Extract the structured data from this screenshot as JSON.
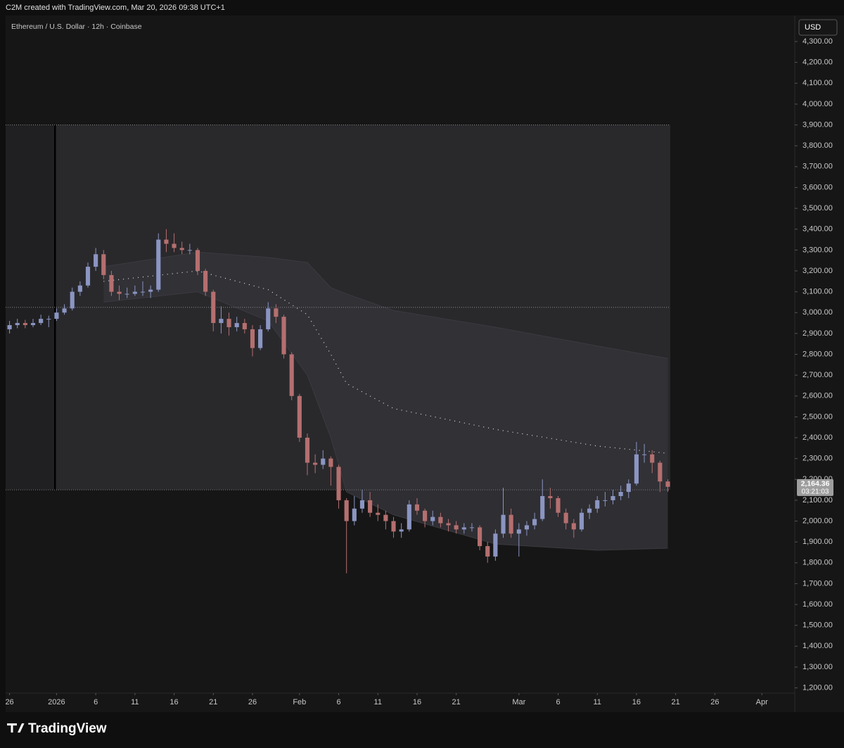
{
  "header": "C2M created with TradingView.com, Mar 20, 2026 09:38 UTC+1",
  "logo": "TradingView",
  "chart_data": {
    "type": "candlestick",
    "title": "Ethereum / U.S. Dollar · 12h · Coinbase",
    "currency": "USD",
    "up_color": "#8b95c2",
    "down_color": "#b56f6f",
    "x": [
      0,
      1,
      2,
      3,
      4,
      5,
      6,
      7,
      8,
      9,
      10,
      11,
      12,
      13,
      14,
      15,
      16,
      17,
      18,
      19,
      20,
      21,
      22,
      23,
      24,
      25,
      26,
      27,
      28,
      29,
      30,
      31,
      32,
      33,
      34,
      35,
      36,
      37,
      38,
      39,
      40,
      41,
      42,
      43,
      44,
      45,
      46,
      47,
      48,
      49,
      50,
      51,
      52,
      53,
      54,
      55,
      56,
      57,
      58,
      59,
      60,
      61,
      62,
      63,
      64,
      65,
      66,
      67,
      68,
      69,
      70,
      71,
      72,
      73,
      74,
      75,
      76,
      77,
      78,
      79,
      80,
      81,
      82,
      83,
      84
    ],
    "open": [
      2920,
      2940,
      2950,
      2940,
      2950,
      2970,
      2970,
      3000,
      3020,
      3100,
      3130,
      3220,
      3280,
      3180,
      3100,
      3090,
      3090,
      3100,
      3100,
      3110,
      3350,
      3330,
      3310,
      3300,
      3300,
      3200,
      3100,
      2950,
      2970,
      2930,
      2950,
      2920,
      2830,
      2920,
      3020,
      2980,
      2800,
      2600,
      2400,
      2280,
      2270,
      2300,
      2260,
      2100,
      2000,
      2060,
      2100,
      2040,
      2030,
      2000,
      1950,
      1960,
      2080,
      2050,
      2000,
      2020,
      1990,
      1980,
      1960,
      1970,
      1970,
      1880,
      1830,
      1940,
      2030,
      1940,
      1960,
      1980,
      2010,
      2120,
      2110,
      2040,
      1990,
      1960,
      2040,
      2060,
      2100,
      2100,
      2120,
      2140,
      2180,
      2320,
      2320,
      2280,
      2190
    ],
    "high": [
      2960,
      2970,
      2965,
      2970,
      2990,
      2985,
      3020,
      3040,
      3120,
      3150,
      3240,
      3310,
      3300,
      3200,
      3130,
      3120,
      3130,
      3150,
      3130,
      3380,
      3400,
      3380,
      3340,
      3330,
      3310,
      3210,
      3110,
      3030,
      3000,
      2980,
      2970,
      2940,
      2940,
      3050,
      3040,
      2990,
      2810,
      2610,
      2420,
      2320,
      2340,
      2310,
      2270,
      2110,
      2120,
      2150,
      2140,
      2080,
      2050,
      2020,
      1990,
      2100,
      2110,
      2060,
      2050,
      2040,
      2010,
      2000,
      1990,
      1990,
      1980,
      1900,
      1960,
      2160,
      2060,
      1990,
      2000,
      2040,
      2200,
      2160,
      2120,
      2060,
      2010,
      2060,
      2080,
      2120,
      2140,
      2150,
      2170,
      2200,
      2380,
      2370,
      2340,
      2290,
      2200
    ],
    "low": [
      2900,
      2925,
      2925,
      2930,
      2940,
      2930,
      2960,
      2990,
      3010,
      3080,
      3120,
      3200,
      3160,
      3080,
      3060,
      3070,
      3080,
      3080,
      3070,
      3100,
      3290,
      3290,
      3280,
      3280,
      3180,
      3080,
      2910,
      2900,
      2890,
      2910,
      2900,
      2790,
      2820,
      2910,
      2950,
      2780,
      2580,
      2380,
      2220,
      2230,
      2250,
      2170,
      2060,
      1750,
      1980,
      2040,
      2020,
      2000,
      1960,
      1920,
      1920,
      1950,
      2030,
      1970,
      1980,
      1970,
      1950,
      1940,
      1940,
      1950,
      1860,
      1800,
      1810,
      1920,
      1920,
      1830,
      1930,
      1960,
      2000,
      2060,
      2020,
      1960,
      1920,
      1950,
      2010,
      2040,
      2070,
      2080,
      2100,
      2110,
      2170,
      2280,
      2230,
      2140,
      2140
    ],
    "close": [
      2940,
      2950,
      2940,
      2950,
      2970,
      2970,
      3000,
      3020,
      3100,
      3130,
      3220,
      3280,
      3180,
      3100,
      3090,
      3090,
      3100,
      3100,
      3110,
      3350,
      3330,
      3310,
      3300,
      3300,
      3200,
      3100,
      2950,
      2970,
      2930,
      2950,
      2920,
      2830,
      2920,
      3020,
      2980,
      2800,
      2600,
      2400,
      2280,
      2270,
      2300,
      2260,
      2100,
      2000,
      2060,
      2100,
      2040,
      2030,
      2000,
      1950,
      1960,
      2080,
      2050,
      2000,
      2020,
      1990,
      1980,
      1960,
      1970,
      1970,
      1880,
      1830,
      1940,
      2030,
      1940,
      1960,
      1980,
      2010,
      2120,
      2110,
      2040,
      1990,
      1960,
      2040,
      2060,
      2100,
      2100,
      2120,
      2140,
      2180,
      2320,
      2320,
      2280,
      2190,
      2164.36
    ],
    "bands": {
      "x": [
        12,
        24,
        33,
        38,
        41,
        43,
        49,
        62,
        75,
        84
      ],
      "upper": [
        3220,
        3290,
        3265,
        3240,
        3120,
        3090,
        3010,
        2930,
        2840,
        2780
      ],
      "middle": [
        3150,
        3200,
        3110,
        2990,
        2800,
        2660,
        2540,
        2440,
        2360,
        2325
      ],
      "lower": [
        3050,
        3100,
        2960,
        2700,
        2400,
        2140,
        2030,
        1890,
        1860,
        1870
      ]
    },
    "levels": [
      3900,
      3025,
      2150
    ],
    "last_price": {
      "value": 2164.36,
      "label": "2,164.36"
    },
    "countdown": "03:21:03",
    "xlim": [
      -0.5,
      100.2
    ],
    "xticks": [
      {
        "value": 0,
        "label": "26"
      },
      {
        "value": 6,
        "label": "2026"
      },
      {
        "value": 11,
        "label": "6"
      },
      {
        "value": 16,
        "label": "11"
      },
      {
        "value": 21,
        "label": "16"
      },
      {
        "value": 26,
        "label": "21"
      },
      {
        "value": 31,
        "label": "26"
      },
      {
        "value": 37,
        "label": "Feb"
      },
      {
        "value": 42,
        "label": "6"
      },
      {
        "value": 47,
        "label": "11"
      },
      {
        "value": 52,
        "label": "16"
      },
      {
        "value": 57,
        "label": "21"
      },
      {
        "value": 65,
        "label": "Mar"
      },
      {
        "value": 70,
        "label": "6"
      },
      {
        "value": 75,
        "label": "11"
      },
      {
        "value": 80,
        "label": "16"
      },
      {
        "value": 85,
        "label": "21"
      },
      {
        "value": 90,
        "label": "26"
      },
      {
        "value": 96,
        "label": "Apr"
      }
    ],
    "ylim": [
      1175,
      4425
    ],
    "yticks": [
      {
        "value": 1200,
        "label": "1,200.00"
      },
      {
        "value": 1300,
        "label": "1,300.00"
      },
      {
        "value": 1400,
        "label": "1,400.00"
      },
      {
        "value": 1500,
        "label": "1,500.00"
      },
      {
        "value": 1600,
        "label": "1,600.00"
      },
      {
        "value": 1700,
        "label": "1,700.00"
      },
      {
        "value": 1800,
        "label": "1,800.00"
      },
      {
        "value": 1900,
        "label": "1,900.00"
      },
      {
        "value": 2000,
        "label": "2,000.00"
      },
      {
        "value": 2100,
        "label": "2,100.00"
      },
      {
        "value": 2200,
        "label": "2,200.00"
      },
      {
        "value": 2300,
        "label": "2,300.00"
      },
      {
        "value": 2400,
        "label": "2,400.00"
      },
      {
        "value": 2500,
        "label": "2,500.00"
      },
      {
        "value": 2600,
        "label": "2,600.00"
      },
      {
        "value": 2700,
        "label": "2,700.00"
      },
      {
        "value": 2800,
        "label": "2,800.00"
      },
      {
        "value": 2900,
        "label": "2,900.00"
      },
      {
        "value": 3000,
        "label": "3,000.00"
      },
      {
        "value": 3100,
        "label": "3,100.00"
      },
      {
        "value": 3200,
        "label": "3,200.00"
      },
      {
        "value": 3300,
        "label": "3,300.00"
      },
      {
        "value": 3400,
        "label": "3,400.00"
      },
      {
        "value": 3500,
        "label": "3,500.00"
      },
      {
        "value": 3600,
        "label": "3,600.00"
      },
      {
        "value": 3700,
        "label": "3,700.00"
      },
      {
        "value": 3800,
        "label": "3,800.00"
      },
      {
        "value": 3900,
        "label": "3,900.00"
      },
      {
        "value": 4000,
        "label": "4,000.00"
      },
      {
        "value": 4100,
        "label": "4,100.00"
      },
      {
        "value": 4200,
        "label": "4,200.00"
      },
      {
        "value": 4300,
        "label": "4,300.00"
      }
    ]
  }
}
